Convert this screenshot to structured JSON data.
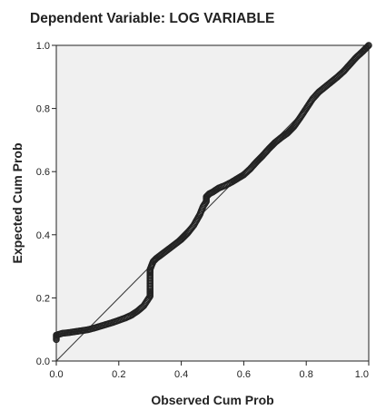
{
  "chart_data": {
    "type": "scatter",
    "title": "Dependent Variable: LOG VARIABLE",
    "xlabel": "Observed Cum Prob",
    "ylabel": "Expected Cum Prob",
    "xlim": [
      0,
      1
    ],
    "ylim": [
      0,
      1
    ],
    "xticks": [
      "0.0",
      "0.2",
      "0.4",
      "0.6",
      "0.8",
      "1.0"
    ],
    "yticks": [
      "0.0",
      "0.2",
      "0.4",
      "0.6",
      "0.8",
      "1.0"
    ],
    "grid": false,
    "legend": "none",
    "reference_line": {
      "from": [
        0,
        0
      ],
      "to": [
        1,
        1
      ]
    },
    "series": [
      {
        "marker": "open-circle",
        "color": "#222222",
        "points": [
          [
            0.0,
            0.068
          ],
          [
            0.0,
            0.082
          ],
          [
            0.02,
            0.088
          ],
          [
            0.04,
            0.09
          ],
          [
            0.06,
            0.093
          ],
          [
            0.08,
            0.096
          ],
          [
            0.1,
            0.099
          ],
          [
            0.12,
            0.104
          ],
          [
            0.14,
            0.11
          ],
          [
            0.16,
            0.116
          ],
          [
            0.18,
            0.122
          ],
          [
            0.2,
            0.129
          ],
          [
            0.22,
            0.136
          ],
          [
            0.24,
            0.145
          ],
          [
            0.26,
            0.158
          ],
          [
            0.28,
            0.175
          ],
          [
            0.29,
            0.19
          ],
          [
            0.3,
            0.205
          ],
          [
            0.3,
            0.22
          ],
          [
            0.3,
            0.25
          ],
          [
            0.3,
            0.28
          ],
          [
            0.3,
            0.29
          ],
          [
            0.31,
            0.315
          ],
          [
            0.32,
            0.325
          ],
          [
            0.34,
            0.34
          ],
          [
            0.36,
            0.355
          ],
          [
            0.38,
            0.37
          ],
          [
            0.4,
            0.385
          ],
          [
            0.42,
            0.405
          ],
          [
            0.44,
            0.43
          ],
          [
            0.46,
            0.465
          ],
          [
            0.47,
            0.49
          ],
          [
            0.48,
            0.505
          ],
          [
            0.48,
            0.52
          ],
          [
            0.49,
            0.53
          ],
          [
            0.5,
            0.535
          ],
          [
            0.52,
            0.548
          ],
          [
            0.54,
            0.556
          ],
          [
            0.56,
            0.566
          ],
          [
            0.58,
            0.578
          ],
          [
            0.6,
            0.59
          ],
          [
            0.62,
            0.608
          ],
          [
            0.64,
            0.63
          ],
          [
            0.66,
            0.65
          ],
          [
            0.68,
            0.672
          ],
          [
            0.7,
            0.692
          ],
          [
            0.72,
            0.708
          ],
          [
            0.74,
            0.722
          ],
          [
            0.76,
            0.742
          ],
          [
            0.78,
            0.77
          ],
          [
            0.8,
            0.8
          ],
          [
            0.82,
            0.83
          ],
          [
            0.84,
            0.852
          ],
          [
            0.86,
            0.868
          ],
          [
            0.88,
            0.884
          ],
          [
            0.9,
            0.9
          ],
          [
            0.92,
            0.918
          ],
          [
            0.94,
            0.94
          ],
          [
            0.96,
            0.962
          ],
          [
            0.98,
            0.98
          ],
          [
            0.99,
            0.99
          ],
          [
            1.0,
            1.0
          ]
        ]
      }
    ]
  }
}
